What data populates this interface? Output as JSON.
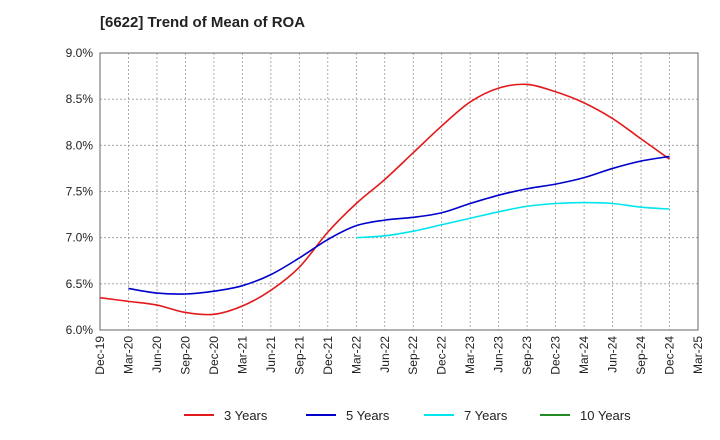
{
  "chart_data": {
    "type": "line",
    "title": "[6622]  Trend of Mean of ROA",
    "xlabel": "",
    "ylabel": "",
    "ylim": [
      6.0,
      9.0
    ],
    "y_ticks": [
      "6.0%",
      "6.5%",
      "7.0%",
      "7.5%",
      "8.0%",
      "8.5%",
      "9.0%"
    ],
    "y_tick_values": [
      6.0,
      6.5,
      7.0,
      7.5,
      8.0,
      8.5,
      9.0
    ],
    "x_ticks": [
      "Dec-19",
      "Mar-20",
      "Jun-20",
      "Sep-20",
      "Dec-20",
      "Mar-21",
      "Jun-21",
      "Sep-21",
      "Dec-21",
      "Mar-22",
      "Jun-22",
      "Sep-22",
      "Dec-22",
      "Mar-23",
      "Jun-23",
      "Sep-23",
      "Dec-23",
      "Mar-24",
      "Jun-24",
      "Sep-24",
      "Dec-24",
      "Mar-25"
    ],
    "grid": true,
    "legend_position": "bottom",
    "series": [
      {
        "name": "3 Years",
        "color": "#e31a1c",
        "start_index": 0,
        "values": [
          6.35,
          6.31,
          6.27,
          6.19,
          6.17,
          6.26,
          6.43,
          6.68,
          7.06,
          7.37,
          7.63,
          7.92,
          8.21,
          8.47,
          8.62,
          8.66,
          8.58,
          8.46,
          8.29,
          8.07,
          7.85
        ]
      },
      {
        "name": "5 Years",
        "color": "#0000cc",
        "start_index": 1,
        "values": [
          6.45,
          6.4,
          6.39,
          6.42,
          6.48,
          6.6,
          6.78,
          6.98,
          7.13,
          7.19,
          7.22,
          7.27,
          7.37,
          7.46,
          7.53,
          7.58,
          7.65,
          7.75,
          7.83,
          7.88
        ]
      },
      {
        "name": "7 Years",
        "color": "#00e5ee",
        "start_index": 9,
        "values": [
          7.0,
          7.02,
          7.07,
          7.14,
          7.21,
          7.28,
          7.34,
          7.37,
          7.38,
          7.37,
          7.33,
          7.31
        ]
      },
      {
        "name": "10 Years",
        "color": "#228b22",
        "start_index": 21,
        "values": []
      }
    ]
  }
}
